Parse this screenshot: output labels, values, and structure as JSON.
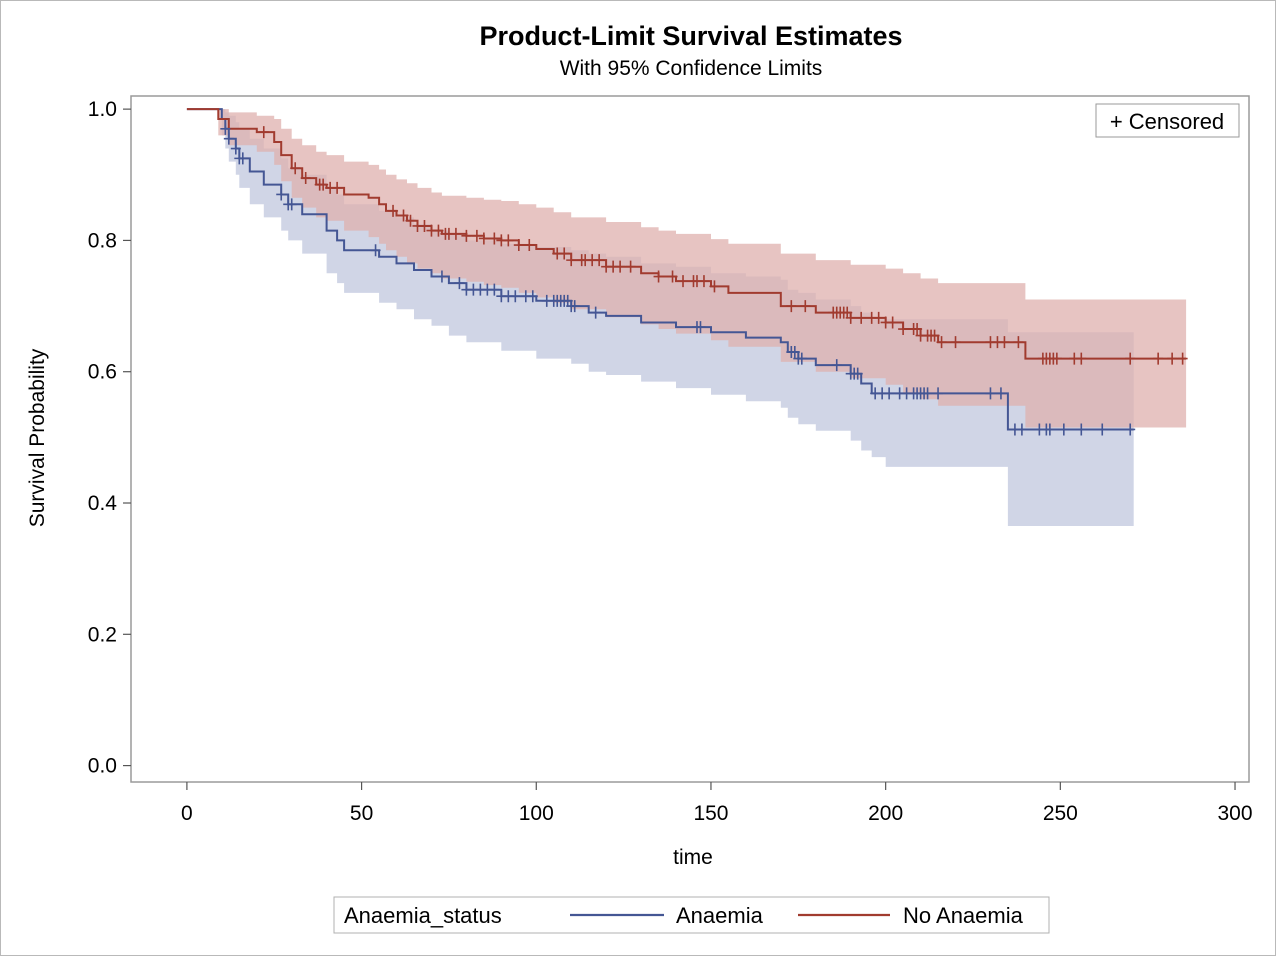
{
  "chart_data": {
    "type": "line",
    "title": "Product-Limit Survival Estimates",
    "subtitle": "With 95% Confidence Limits",
    "xlabel": "time",
    "ylabel": "Survival Probability",
    "xlim": [
      -16,
      304
    ],
    "ylim": [
      -0.025,
      1.02
    ],
    "xticks": [
      "0",
      "50",
      "100",
      "150",
      "200",
      "250",
      "300"
    ],
    "yticks": [
      "0.0",
      "0.2",
      "0.4",
      "0.6",
      "0.8",
      "1.0"
    ],
    "censored_label": "+ Censored",
    "legend": {
      "title": "Anaemia_status",
      "position": "bottom"
    },
    "series": [
      {
        "name": "Anaemia",
        "color": "#445694",
        "band_color": "#c0c7dd",
        "x": [
          0,
          8,
          10,
          11,
          12,
          14,
          15,
          18,
          22,
          27,
          29,
          33,
          40,
          43,
          45,
          55,
          60,
          65,
          70,
          75,
          80,
          90,
          100,
          110,
          115,
          120,
          130,
          140,
          150,
          160,
          170,
          172,
          175,
          180,
          190,
          193,
          196,
          200,
          235,
          271
        ],
        "y": [
          1.0,
          1.0,
          0.985,
          0.97,
          0.955,
          0.94,
          0.925,
          0.905,
          0.885,
          0.87,
          0.855,
          0.84,
          0.815,
          0.8,
          0.785,
          0.775,
          0.765,
          0.755,
          0.745,
          0.735,
          0.725,
          0.715,
          0.708,
          0.7,
          0.69,
          0.685,
          0.675,
          0.668,
          0.66,
          0.652,
          0.645,
          0.63,
          0.62,
          0.61,
          0.597,
          0.582,
          0.567,
          0.567,
          0.512,
          0.512
        ],
        "lower": [
          1.0,
          1.0,
          0.96,
          0.94,
          0.92,
          0.9,
          0.88,
          0.855,
          0.835,
          0.815,
          0.8,
          0.78,
          0.75,
          0.735,
          0.72,
          0.705,
          0.695,
          0.68,
          0.67,
          0.655,
          0.645,
          0.632,
          0.62,
          0.612,
          0.6,
          0.595,
          0.585,
          0.575,
          0.565,
          0.555,
          0.545,
          0.53,
          0.52,
          0.51,
          0.495,
          0.48,
          0.47,
          0.455,
          0.365,
          0.365
        ],
        "upper": [
          1.0,
          1.0,
          1.0,
          0.995,
          0.99,
          0.98,
          0.97,
          0.955,
          0.94,
          0.925,
          0.91,
          0.9,
          0.88,
          0.87,
          0.855,
          0.845,
          0.835,
          0.825,
          0.815,
          0.81,
          0.8,
          0.795,
          0.79,
          0.785,
          0.78,
          0.775,
          0.765,
          0.76,
          0.75,
          0.745,
          0.74,
          0.725,
          0.72,
          0.71,
          0.7,
          0.69,
          0.68,
          0.68,
          0.66,
          0.66
        ],
        "censored": [
          11,
          12,
          14,
          15,
          16,
          27,
          29,
          30,
          54,
          73,
          78,
          80,
          82,
          84,
          86,
          88,
          90,
          92,
          94,
          97,
          99,
          103,
          105,
          106,
          107,
          108,
          109,
          110,
          111,
          117,
          146,
          147,
          173,
          174,
          175,
          176,
          186,
          190,
          191,
          192,
          197,
          199,
          201,
          204,
          206,
          208,
          209,
          210,
          211,
          212,
          215,
          230,
          233,
          237,
          239,
          244,
          246,
          247,
          251,
          256,
          262,
          270
        ]
      },
      {
        "name": "No Anaemia",
        "color": "#a13b2f",
        "band_color": "#dfb0ae",
        "x": [
          0,
          7,
          9,
          12,
          20,
          25,
          27,
          30,
          33,
          37,
          40,
          45,
          52,
          55,
          57,
          60,
          63,
          66,
          70,
          73,
          80,
          85,
          90,
          95,
          100,
          105,
          110,
          120,
          130,
          135,
          140,
          150,
          155,
          170,
          180,
          190,
          200,
          205,
          210,
          215,
          240,
          286
        ],
        "y": [
          1.0,
          1.0,
          0.985,
          0.97,
          0.965,
          0.95,
          0.93,
          0.91,
          0.895,
          0.885,
          0.88,
          0.87,
          0.865,
          0.855,
          0.845,
          0.838,
          0.83,
          0.822,
          0.815,
          0.81,
          0.807,
          0.803,
          0.8,
          0.793,
          0.787,
          0.78,
          0.77,
          0.76,
          0.75,
          0.745,
          0.738,
          0.73,
          0.72,
          0.7,
          0.69,
          0.682,
          0.675,
          0.665,
          0.655,
          0.645,
          0.62,
          0.62
        ],
        "lower": [
          1.0,
          1.0,
          0.96,
          0.945,
          0.935,
          0.915,
          0.89,
          0.865,
          0.85,
          0.835,
          0.83,
          0.815,
          0.805,
          0.795,
          0.785,
          0.775,
          0.765,
          0.757,
          0.75,
          0.742,
          0.737,
          0.732,
          0.728,
          0.72,
          0.713,
          0.705,
          0.695,
          0.683,
          0.672,
          0.665,
          0.658,
          0.648,
          0.638,
          0.615,
          0.6,
          0.59,
          0.58,
          0.568,
          0.558,
          0.548,
          0.515,
          0.515
        ],
        "upper": [
          1.0,
          1.0,
          1.0,
          0.995,
          0.99,
          0.985,
          0.97,
          0.955,
          0.945,
          0.935,
          0.93,
          0.92,
          0.915,
          0.908,
          0.9,
          0.893,
          0.887,
          0.88,
          0.873,
          0.868,
          0.865,
          0.862,
          0.86,
          0.855,
          0.85,
          0.843,
          0.835,
          0.828,
          0.82,
          0.815,
          0.81,
          0.802,
          0.795,
          0.78,
          0.77,
          0.763,
          0.757,
          0.75,
          0.742,
          0.735,
          0.71,
          0.71
        ],
        "censored": [
          22,
          31,
          34,
          38,
          39,
          41,
          43,
          59,
          62,
          64,
          66,
          68,
          70,
          72,
          74,
          75,
          77,
          80,
          83,
          85,
          88,
          90,
          92,
          95,
          98,
          106,
          108,
          110,
          113,
          114,
          116,
          118,
          120,
          122,
          124,
          127,
          135,
          139,
          142,
          145,
          146,
          148,
          151,
          173,
          177,
          185,
          186,
          187,
          188,
          189,
          190,
          193,
          196,
          198,
          200,
          202,
          205,
          208,
          209,
          210,
          212,
          213,
          214,
          216,
          220,
          230,
          232,
          234,
          238,
          245,
          246,
          247,
          248,
          249,
          254,
          256,
          270,
          278,
          282,
          285
        ]
      }
    ]
  }
}
